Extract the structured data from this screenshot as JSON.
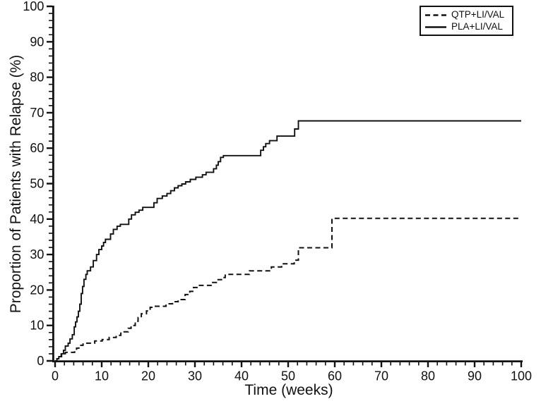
{
  "chart_data": {
    "type": "line",
    "subtype": "step-relapse-curve",
    "title": "",
    "xlabel": "Time (weeks)",
    "ylabel": "Proportion of Patients with Relapse (%)",
    "xlim": [
      0,
      100
    ],
    "ylim": [
      0,
      100
    ],
    "x_ticks": [
      0,
      10,
      20,
      30,
      40,
      50,
      60,
      70,
      80,
      90,
      100
    ],
    "y_ticks": [
      0,
      10,
      20,
      30,
      40,
      50,
      60,
      70,
      80,
      90,
      100
    ],
    "minor_tick_step": 2,
    "grid": false,
    "legend_position": "top-right",
    "line_color": "#111111",
    "series": [
      {
        "name": "QTP+LI/VAL",
        "style": "dashed",
        "color": "#111111",
        "final_value": 40.2,
        "points": [
          [
            0,
            0
          ],
          [
            0.4,
            0.6
          ],
          [
            0.9,
            1.2
          ],
          [
            1.4,
            2.0
          ],
          [
            2.2,
            2.4
          ],
          [
            4.2,
            3.0
          ],
          [
            4.6,
            3.6
          ],
          [
            5.1,
            4.4
          ],
          [
            6.0,
            5.0
          ],
          [
            8.5,
            5.6
          ],
          [
            10.1,
            6.0
          ],
          [
            11.6,
            6.6
          ],
          [
            13.1,
            7.2
          ],
          [
            14.1,
            8.2
          ],
          [
            15.7,
            9.2
          ],
          [
            16.3,
            10.0
          ],
          [
            17.2,
            11.2
          ],
          [
            17.8,
            12.2
          ],
          [
            18.5,
            13.3
          ],
          [
            19.6,
            14.1
          ],
          [
            20.4,
            15.1
          ],
          [
            21.3,
            15.4
          ],
          [
            23.8,
            16.1
          ],
          [
            25.2,
            16.7
          ],
          [
            26.4,
            17.3
          ],
          [
            27.9,
            18.7
          ],
          [
            28.9,
            19.6
          ],
          [
            29.7,
            20.7
          ],
          [
            30.8,
            21.3
          ],
          [
            33.8,
            22.1
          ],
          [
            34.8,
            22.9
          ],
          [
            35.7,
            23.5
          ],
          [
            36.5,
            24.4
          ],
          [
            41.7,
            25.4
          ],
          [
            46.4,
            26.5
          ],
          [
            48.6,
            27.4
          ],
          [
            51.3,
            28.4
          ],
          [
            52.2,
            31.9
          ],
          [
            59.4,
            40.2
          ],
          [
            100,
            40.2
          ]
        ]
      },
      {
        "name": "PLA+LI/VAL",
        "style": "solid",
        "color": "#111111",
        "final_value": 67.7,
        "points": [
          [
            0,
            0
          ],
          [
            0.4,
            0.6
          ],
          [
            0.8,
            1.2
          ],
          [
            1.3,
            2.0
          ],
          [
            1.8,
            3.0
          ],
          [
            2.2,
            4.2
          ],
          [
            2.8,
            5.0
          ],
          [
            3.2,
            6.2
          ],
          [
            3.7,
            7.4
          ],
          [
            4.1,
            9.6
          ],
          [
            4.4,
            11.0
          ],
          [
            4.7,
            12.4
          ],
          [
            5.0,
            14.0
          ],
          [
            5.3,
            16.0
          ],
          [
            5.6,
            19.0
          ],
          [
            5.9,
            21.0
          ],
          [
            6.2,
            23.0
          ],
          [
            6.6,
            24.4
          ],
          [
            6.9,
            25.4
          ],
          [
            7.6,
            26.5
          ],
          [
            8.2,
            28.3
          ],
          [
            8.9,
            30.0
          ],
          [
            9.4,
            31.4
          ],
          [
            10.0,
            32.4
          ],
          [
            10.4,
            33.4
          ],
          [
            10.8,
            34.3
          ],
          [
            11.9,
            35.8
          ],
          [
            12.5,
            37.1
          ],
          [
            13.3,
            38.0
          ],
          [
            14.0,
            38.5
          ],
          [
            15.8,
            40.0
          ],
          [
            16.4,
            41.2
          ],
          [
            17.2,
            41.9
          ],
          [
            18.0,
            42.5
          ],
          [
            18.8,
            43.3
          ],
          [
            21.2,
            44.6
          ],
          [
            21.9,
            45.8
          ],
          [
            23.0,
            46.5
          ],
          [
            24.0,
            47.2
          ],
          [
            24.8,
            48.0
          ],
          [
            25.6,
            48.8
          ],
          [
            26.4,
            49.4
          ],
          [
            27.2,
            49.9
          ],
          [
            28.0,
            50.5
          ],
          [
            29.0,
            51.2
          ],
          [
            30.2,
            51.8
          ],
          [
            31.6,
            52.5
          ],
          [
            32.4,
            53.2
          ],
          [
            34.0,
            54.2
          ],
          [
            34.6,
            55.2
          ],
          [
            35.0,
            56.2
          ],
          [
            35.5,
            57.4
          ],
          [
            36.1,
            57.9
          ],
          [
            44.1,
            59.4
          ],
          [
            44.7,
            60.4
          ],
          [
            45.2,
            61.3
          ],
          [
            46.0,
            62.1
          ],
          [
            47.6,
            63.4
          ],
          [
            51.4,
            65.4
          ],
          [
            52.2,
            67.7
          ],
          [
            100,
            67.7
          ]
        ]
      }
    ]
  }
}
